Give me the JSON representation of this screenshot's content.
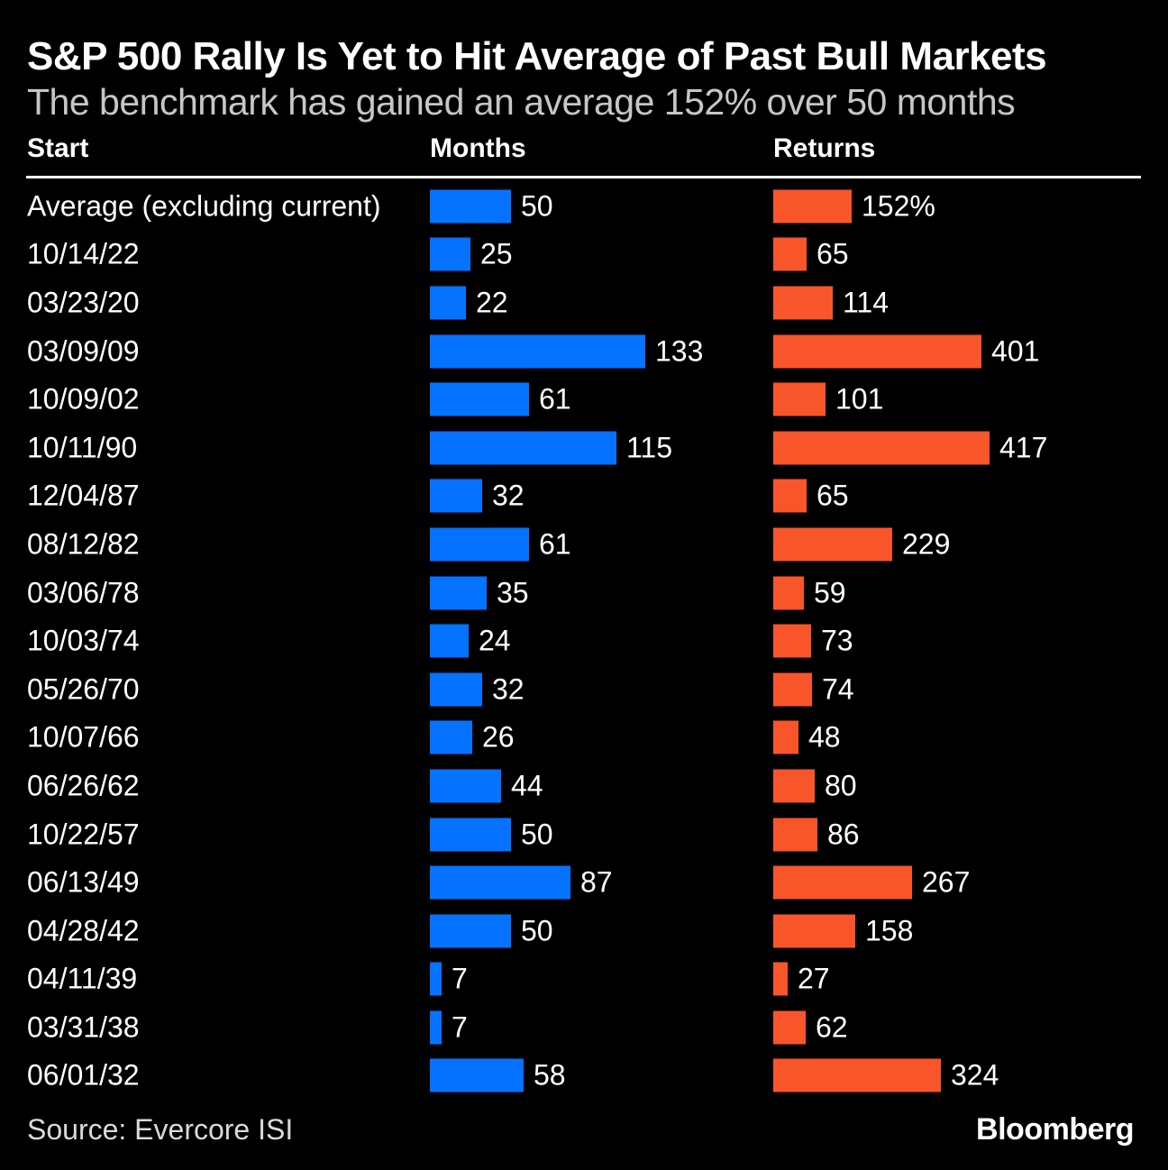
{
  "header": {
    "title": "S&P 500 Rally Is Yet to Hit Average of Past Bull Markets",
    "subtitle": "The benchmark has gained an average 152% over 50 months"
  },
  "columns": {
    "start": "Start",
    "months": "Months",
    "returns": "Returns"
  },
  "footer": {
    "source": "Source: Evercore ISI",
    "brand": "Bloomberg"
  },
  "colors": {
    "background": "#000000",
    "months_bar": "#0573ff",
    "returns_bar": "#f8552a",
    "title_text": "#ffffff",
    "subtitle_text": "#c6c6c6",
    "value_text": "#ffffff"
  },
  "chart_data": {
    "type": "bar",
    "orientation": "horizontal",
    "title": "S&P 500 Rally Is Yet to Hit Average of Past Bull Markets",
    "subtitle": "The benchmark has gained an average 152% over 50 months",
    "grid": false,
    "legend_position": "none",
    "categories": [
      "Average (excluding current)",
      "10/14/22",
      "03/23/20",
      "03/09/09",
      "10/09/02",
      "10/11/90",
      "12/04/87",
      "08/12/82",
      "03/06/78",
      "10/03/74",
      "05/26/70",
      "10/07/66",
      "06/26/62",
      "10/22/57",
      "06/13/49",
      "04/28/42",
      "04/11/39",
      "03/31/38",
      "06/01/32"
    ],
    "series": [
      {
        "name": "Months",
        "color": "#0573ff",
        "xlim": [
          0,
          133
        ],
        "values": [
          50,
          25,
          22,
          133,
          61,
          115,
          32,
          61,
          35,
          24,
          32,
          26,
          44,
          50,
          87,
          50,
          7,
          7,
          58
        ],
        "labels": [
          "50",
          "25",
          "22",
          "133",
          "61",
          "115",
          "32",
          "61",
          "35",
          "24",
          "32",
          "26",
          "44",
          "50",
          "87",
          "50",
          "7",
          "7",
          "58"
        ]
      },
      {
        "name": "Returns",
        "color": "#f8552a",
        "unit": "%",
        "xlim": [
          0,
          417
        ],
        "values": [
          152,
          65,
          114,
          401,
          101,
          417,
          65,
          229,
          59,
          73,
          74,
          48,
          80,
          86,
          267,
          158,
          27,
          62,
          324
        ],
        "labels": [
          "152%",
          "65",
          "114",
          "401",
          "101",
          "417",
          "65",
          "229",
          "59",
          "73",
          "74",
          "48",
          "80",
          "86",
          "267",
          "158",
          "27",
          "62",
          "324"
        ]
      }
    ]
  }
}
